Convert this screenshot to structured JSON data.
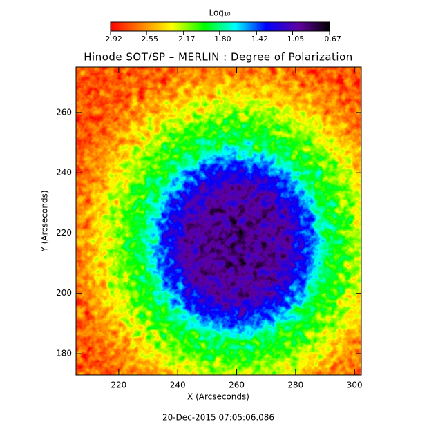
{
  "chart_data": {
    "type": "heatmap",
    "title": "Hinode SOT/SP – MERLIN : Degree of Polarization",
    "x_label": "X (Arcseconds)",
    "y_label": "Y (Arcseconds)",
    "xlim": [
      205.5,
      302.3
    ],
    "xticks": [
      220,
      240,
      260,
      280,
      300
    ],
    "ylim": [
      172.9,
      275.1
    ],
    "yticks": [
      180,
      200,
      220,
      240,
      260
    ],
    "colorbar": {
      "label": "Log₁₀",
      "lim": [
        -2.92,
        -0.67
      ],
      "ticks": [
        {
          "value": -2.92,
          "label": "−2.92"
        },
        {
          "value": -2.55,
          "label": "−2.55"
        },
        {
          "value": -2.17,
          "label": "−2.17"
        },
        {
          "value": -1.8,
          "label": "−1.80"
        },
        {
          "value": -1.42,
          "label": "−1.42"
        },
        {
          "value": -1.05,
          "label": "−1.05"
        },
        {
          "value": -0.67,
          "label": "−0.67"
        }
      ]
    },
    "timestamp": "20-Dec-2015 07:05:06.086"
  }
}
